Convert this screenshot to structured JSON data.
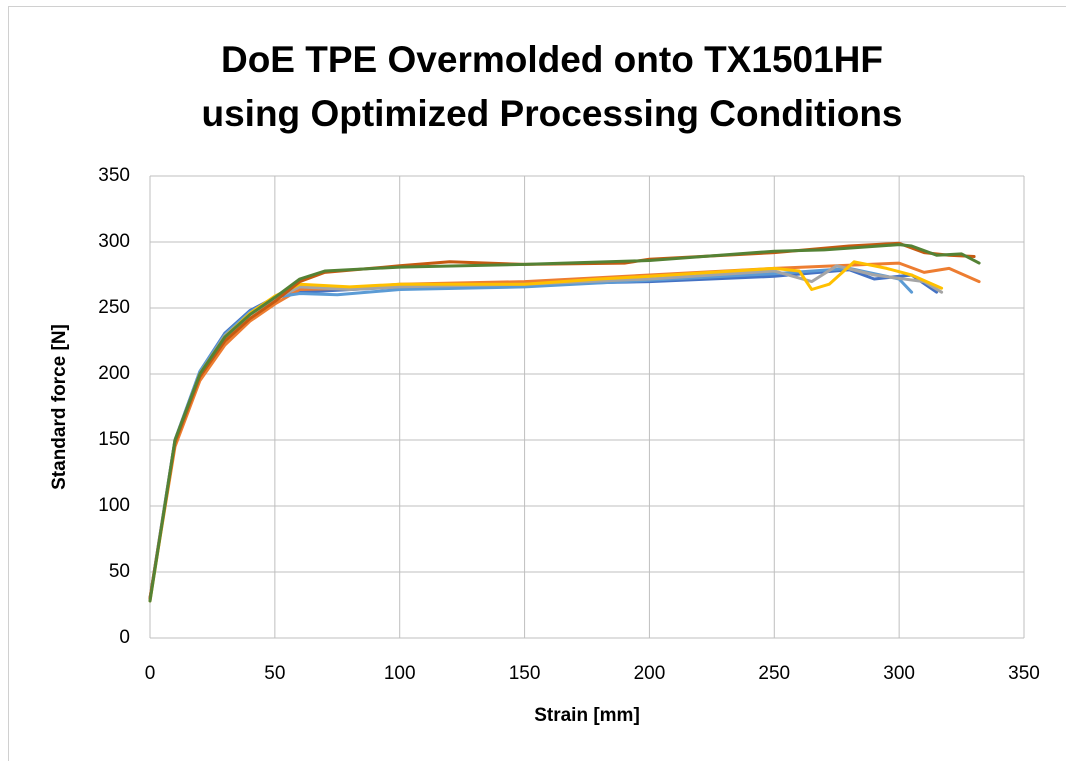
{
  "chart_data": {
    "type": "line",
    "title": [
      "DoE TPE Overmolded onto TX1501HF",
      "using Optimized Processing Conditions"
    ],
    "xlabel": "Strain [mm]",
    "ylabel": "Standard force [N]",
    "xlim": [
      0,
      350
    ],
    "xticks": [
      0,
      50,
      100,
      150,
      200,
      250,
      300,
      350
    ],
    "ylim": [
      0,
      350
    ],
    "yticks": [
      0,
      50,
      100,
      150,
      200,
      250,
      300,
      350
    ],
    "grid": true,
    "series": [
      {
        "color": "#4472c4",
        "x": [
          0,
          10,
          20,
          30,
          40,
          50,
          60,
          100,
          150,
          200,
          250,
          280,
          290,
          305,
          315
        ],
        "values": [
          30,
          150,
          202,
          231,
          248,
          258,
          262,
          266,
          268,
          270,
          274,
          279,
          272,
          275,
          262
        ]
      },
      {
        "color": "#ed7d31",
        "x": [
          0,
          10,
          20,
          30,
          40,
          50,
          60,
          80,
          100,
          150,
          200,
          250,
          300,
          310,
          320,
          332
        ],
        "values": [
          30,
          145,
          195,
          222,
          240,
          253,
          264,
          265,
          268,
          270,
          275,
          280,
          284,
          277,
          280,
          270
        ]
      },
      {
        "color": "#5b9bd5",
        "x": [
          0,
          10,
          20,
          30,
          40,
          50,
          60,
          75,
          100,
          150,
          200,
          250,
          280,
          300,
          305
        ],
        "values": [
          30,
          150,
          202,
          230,
          247,
          258,
          261,
          260,
          264,
          266,
          271,
          276,
          280,
          272,
          262
        ]
      },
      {
        "color": "#a5a5a5",
        "x": [
          0,
          10,
          20,
          30,
          40,
          50,
          60,
          80,
          100,
          150,
          200,
          250,
          265,
          275,
          290,
          310,
          317
        ],
        "values": [
          30,
          150,
          200,
          229,
          245,
          257,
          266,
          264,
          266,
          268,
          272,
          278,
          270,
          282,
          275,
          270,
          262
        ]
      },
      {
        "color": "#ffc000",
        "x": [
          0,
          10,
          20,
          30,
          40,
          50,
          60,
          80,
          100,
          150,
          180,
          200,
          250,
          260,
          265,
          272,
          282,
          295,
          305,
          317
        ],
        "values": [
          28,
          148,
          200,
          228,
          246,
          259,
          268,
          266,
          268,
          268,
          272,
          274,
          280,
          278,
          264,
          268,
          285,
          280,
          275,
          265
        ]
      },
      {
        "color": "#c55a11",
        "x": [
          0,
          10,
          20,
          30,
          40,
          50,
          60,
          70,
          100,
          120,
          150,
          190,
          200,
          250,
          280,
          300,
          310,
          320,
          330
        ],
        "values": [
          30,
          148,
          198,
          225,
          242,
          255,
          270,
          277,
          282,
          285,
          283,
          284,
          287,
          292,
          297,
          299,
          292,
          290,
          289
        ]
      },
      {
        "color": "#548235",
        "x": [
          0,
          10,
          20,
          30,
          40,
          50,
          60,
          70,
          100,
          150,
          200,
          250,
          270,
          300,
          305,
          315,
          325,
          332
        ],
        "values": [
          28,
          150,
          200,
          228,
          245,
          258,
          272,
          278,
          281,
          283,
          286,
          293,
          294,
          298,
          297,
          290,
          291,
          284
        ]
      }
    ]
  }
}
